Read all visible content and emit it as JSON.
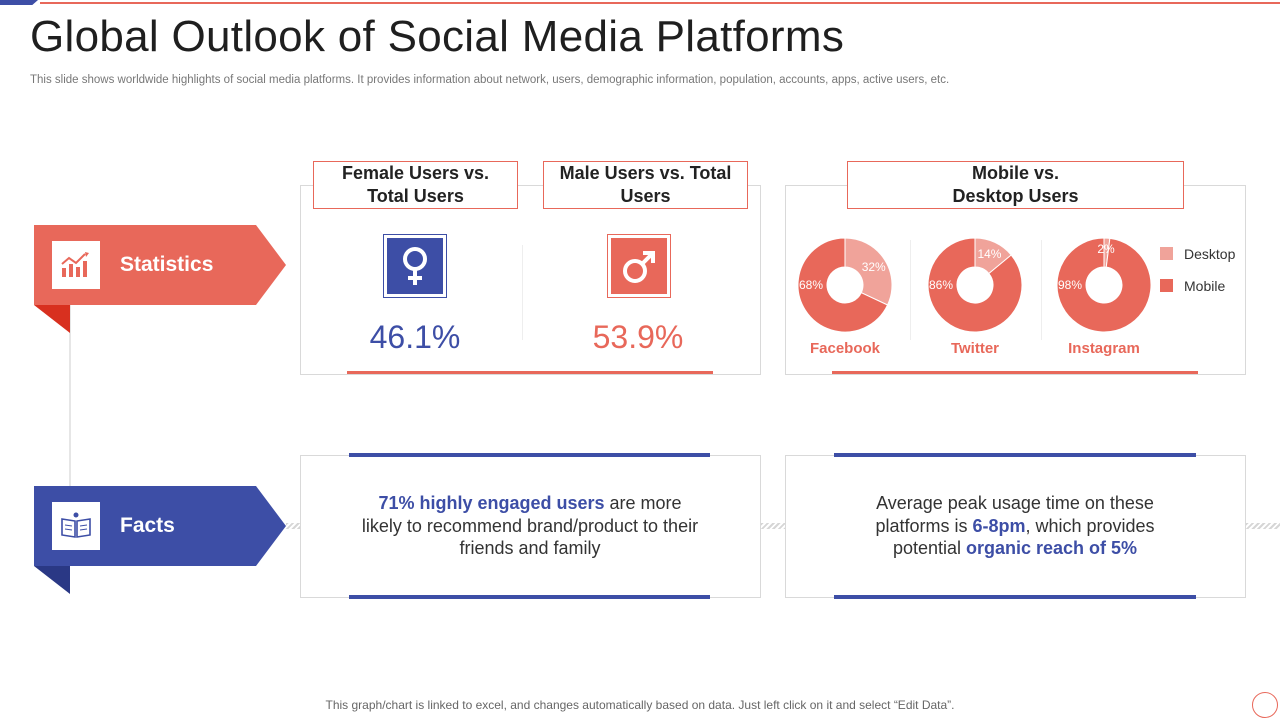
{
  "title": "Global Outlook of Social Media Platforms",
  "subtitle": "This slide shows worldwide highlights of social media platforms. It provides information about network, users, demographic information, population, accounts, apps, active users, etc.",
  "colors": {
    "accent_red": "#e8685a",
    "accent_blue": "#3d4ea6",
    "light_red": "#f0a39a"
  },
  "statistics": {
    "label": "Statistics",
    "icon": "bar-chart-icon",
    "female": {
      "heading_line1": "Female Users vs.",
      "heading_line2": "Total Users",
      "value": "46.1%",
      "icon": "female-symbol-icon"
    },
    "male": {
      "heading_line1": "Male Users vs. Total",
      "heading_line2": "Users",
      "value": "53.9%",
      "icon": "male-symbol-icon"
    },
    "devices_heading_line1": "Mobile vs.",
    "devices_heading_line2": "Desktop Users"
  },
  "chart_data": {
    "type": "pie",
    "title": "Mobile vs. Desktop Users",
    "legend": [
      "Desktop",
      "Mobile"
    ],
    "legend_position": "right",
    "series": [
      {
        "name": "Facebook",
        "desktop": 32,
        "mobile": 68,
        "desktop_label": "32%",
        "mobile_label": "68%"
      },
      {
        "name": "Twitter",
        "desktop": 14,
        "mobile": 86,
        "desktop_label": "14%",
        "mobile_label": "86%"
      },
      {
        "name": "Instagram",
        "desktop": 2,
        "mobile": 98,
        "desktop_label": "2%",
        "mobile_label": "98%"
      }
    ]
  },
  "facts": {
    "label": "Facts",
    "icon": "open-book-icon",
    "fact1": {
      "highlight": "71% highly engaged users",
      "text_a": " are more likely to recommend brand/product to their friends and family"
    },
    "fact2": {
      "text_a": "Average peak usage time on these platforms is ",
      "highlight1": "6-8pm",
      "text_b": ", which provides potential ",
      "highlight2": "organic reach of 5%"
    }
  },
  "footer": "This graph/chart is linked to excel, and changes automatically based on data. Just left click on it and select “Edit Data”."
}
